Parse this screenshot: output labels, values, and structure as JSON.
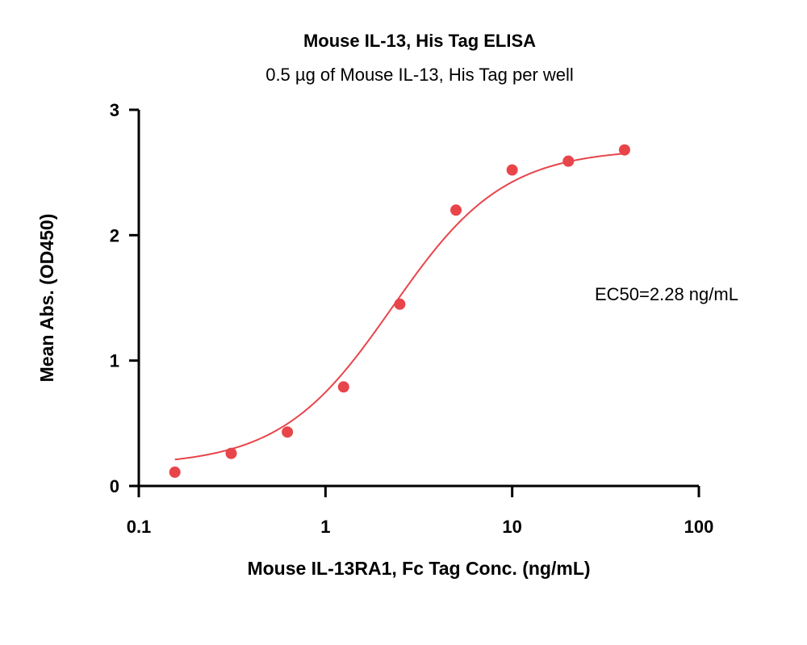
{
  "chart_data": {
    "type": "scatter",
    "title": "Mouse IL-13, His Tag ELISA",
    "subtitle": "0.5 µg of Mouse IL-13, His Tag per well",
    "xlabel": "Mouse IL-13RA1, Fc Tag Conc. (ng/mL)",
    "ylabel": "Mean Abs. (OD450)",
    "x_scale": "log",
    "xlim": [
      0.1,
      100
    ],
    "ylim": [
      0,
      3
    ],
    "x_ticks": [
      0.1,
      1,
      10,
      100
    ],
    "x_tick_labels": [
      "0.1",
      "1",
      "10",
      "100"
    ],
    "y_ticks": [
      0,
      1,
      2,
      3
    ],
    "y_tick_labels": [
      "0",
      "1",
      "2",
      "3"
    ],
    "grid": false,
    "color": "#e8454a",
    "annotation": "EC50=2.28 ng/mL",
    "series": [
      {
        "x": [
          0.156,
          0.3125,
          0.625,
          1.25,
          2.5,
          5,
          10,
          20,
          40
        ],
        "y": [
          0.11,
          0.26,
          0.43,
          0.79,
          1.45,
          2.2,
          2.52,
          2.59,
          2.68
        ]
      }
    ],
    "fit": {
      "type": "4PL",
      "bottom": 0.16,
      "top": 2.69,
      "ec50": 2.28,
      "hill": 1.45
    }
  }
}
